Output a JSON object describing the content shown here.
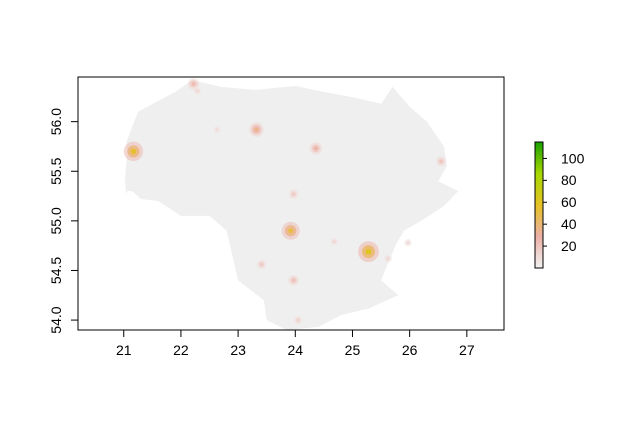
{
  "chart_data": {
    "type": "heatmap",
    "title": "",
    "xlabel": "",
    "ylabel": "",
    "xlim": [
      20.2,
      27.65
    ],
    "ylim": [
      53.9,
      56.45
    ],
    "x_ticks": [
      21,
      22,
      23,
      24,
      25,
      26,
      27
    ],
    "x_tick_labels": [
      "21",
      "22",
      "23",
      "24",
      "25",
      "26",
      "27"
    ],
    "y_ticks": [
      54.0,
      54.5,
      55.0,
      55.5,
      56.0
    ],
    "y_tick_labels": [
      "54.0",
      "54.5",
      "55.0",
      "55.5",
      "56.0"
    ],
    "grid": false,
    "background_fill": "#efefef",
    "legend": {
      "placement": "right",
      "min": 0,
      "max": 115,
      "ticks": [
        20,
        40,
        60,
        80,
        100
      ],
      "tick_labels": [
        "20",
        "40",
        "60",
        "80",
        "100"
      ],
      "color_stops": [
        "#f2f2f2",
        "#ecb0a6",
        "#e6c224",
        "#a6d800",
        "#18a000"
      ]
    },
    "outline": [
      [
        21.05,
        55.3
      ],
      [
        21.05,
        55.8
      ],
      [
        21.25,
        56.1
      ],
      [
        21.9,
        56.3
      ],
      [
        22.2,
        56.42
      ],
      [
        22.7,
        56.35
      ],
      [
        23.3,
        56.32
      ],
      [
        24.0,
        56.36
      ],
      [
        24.5,
        56.3
      ],
      [
        25.05,
        56.24
      ],
      [
        25.5,
        56.18
      ],
      [
        25.7,
        56.35
      ],
      [
        26.0,
        56.15
      ],
      [
        26.3,
        56.0
      ],
      [
        26.6,
        55.75
      ],
      [
        26.65,
        55.55
      ],
      [
        26.5,
        55.4
      ],
      [
        26.85,
        55.3
      ],
      [
        26.6,
        55.15
      ],
      [
        26.2,
        55.0
      ],
      [
        25.9,
        54.9
      ],
      [
        25.75,
        54.75
      ],
      [
        25.5,
        54.4
      ],
      [
        25.8,
        54.25
      ],
      [
        25.6,
        54.2
      ],
      [
        25.3,
        54.12
      ],
      [
        24.8,
        54.05
      ],
      [
        24.4,
        53.93
      ],
      [
        23.85,
        53.9
      ],
      [
        23.5,
        54.0
      ],
      [
        23.45,
        54.2
      ],
      [
        23.0,
        54.4
      ],
      [
        22.8,
        54.9
      ],
      [
        22.5,
        55.05
      ],
      [
        22.0,
        55.05
      ],
      [
        21.6,
        55.2
      ],
      [
        21.3,
        55.22
      ],
      [
        21.15,
        55.3
      ]
    ],
    "spit": [
      [
        21.05,
        55.25
      ],
      [
        21.08,
        55.6
      ],
      [
        21.12,
        55.7
      ],
      [
        21.06,
        55.7
      ],
      [
        21.02,
        55.4
      ]
    ],
    "hotspots": [
      {
        "x": 25.28,
        "y": 54.69,
        "value": 60
      },
      {
        "x": 23.92,
        "y": 54.9,
        "value": 50
      },
      {
        "x": 21.17,
        "y": 55.7,
        "value": 55
      },
      {
        "x": 23.32,
        "y": 55.92,
        "value": 35
      },
      {
        "x": 24.36,
        "y": 55.73,
        "value": 28
      },
      {
        "x": 22.22,
        "y": 56.38,
        "value": 25
      },
      {
        "x": 23.97,
        "y": 54.4,
        "value": 22
      },
      {
        "x": 26.55,
        "y": 55.6,
        "value": 20
      },
      {
        "x": 23.41,
        "y": 54.56,
        "value": 18
      },
      {
        "x": 23.97,
        "y": 55.27,
        "value": 18
      },
      {
        "x": 24.05,
        "y": 54.0,
        "value": 15
      },
      {
        "x": 22.29,
        "y": 56.31,
        "value": 12
      },
      {
        "x": 25.62,
        "y": 54.62,
        "value": 12
      },
      {
        "x": 24.68,
        "y": 54.79,
        "value": 12
      },
      {
        "x": 25.97,
        "y": 54.78,
        "value": 10
      },
      {
        "x": 22.63,
        "y": 55.92,
        "value": 10
      }
    ]
  }
}
